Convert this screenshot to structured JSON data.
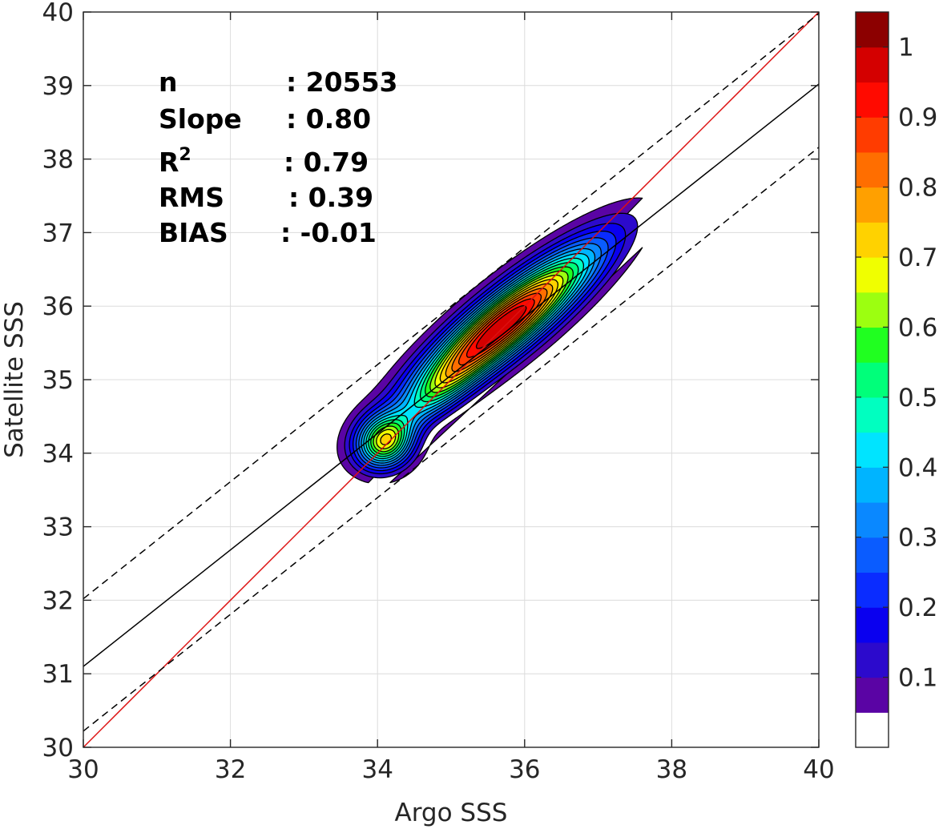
{
  "chart_data": {
    "type": "contour-density",
    "xlabel": "Argo SSS",
    "ylabel": "Satellite SSS",
    "xlim": [
      30,
      40
    ],
    "ylim": [
      30,
      40
    ],
    "xticks": [
      "30",
      "32",
      "34",
      "36",
      "38",
      "40"
    ],
    "yticks": [
      "30",
      "31",
      "32",
      "33",
      "34",
      "35",
      "36",
      "37",
      "38",
      "39",
      "40"
    ],
    "grid": true,
    "stats": [
      {
        "label": "n",
        "value": ": 20553"
      },
      {
        "label": "Slope",
        "value": ": 0.80"
      },
      {
        "label": "R",
        "label_sup": "2",
        "value": ": 0.79"
      },
      {
        "label": "RMS",
        "value": ": 0.39"
      },
      {
        "label": "BIAS",
        "value": ": -0.01"
      }
    ],
    "lines": [
      {
        "kind": "identity",
        "color": "#dd1111",
        "style": "solid",
        "x": [
          30,
          40
        ],
        "y": [
          30,
          40
        ]
      },
      {
        "kind": "regression",
        "color": "#000000",
        "style": "solid",
        "x": [
          30,
          40
        ],
        "y": [
          31.1,
          39.02
        ]
      },
      {
        "kind": "upper-bound",
        "color": "#000000",
        "style": "dashed",
        "x": [
          30,
          40
        ],
        "y": [
          32.02,
          39.98
        ]
      },
      {
        "kind": "lower-bound",
        "color": "#000000",
        "style": "dashed",
        "x": [
          30,
          40
        ],
        "y": [
          30.22,
          38.16
        ]
      }
    ],
    "density_peaks": [
      {
        "x": 35.75,
        "y": 35.78,
        "value": 1.0,
        "sx": 1.05,
        "sy": 0.26,
        "angle_deg": 39
      },
      {
        "x": 34.1,
        "y": 34.15,
        "value": 0.62,
        "sx": 0.27,
        "sy": 0.24,
        "angle_deg": 35
      },
      {
        "x": 34.85,
        "y": 34.85,
        "value": 0.22,
        "sx": 0.55,
        "sy": 0.18,
        "angle_deg": 42
      }
    ],
    "contour_levels": [
      0.05,
      0.1,
      0.15,
      0.2,
      0.25,
      0.3,
      0.35,
      0.4,
      0.45,
      0.5,
      0.55,
      0.6,
      0.65,
      0.7,
      0.75,
      0.8,
      0.85,
      0.9,
      0.95
    ],
    "colorbar": {
      "ticks": [
        "0.1",
        "0.2",
        "0.3",
        "0.4",
        "0.5",
        "0.6",
        "0.7",
        "0.8",
        "0.9",
        "1"
      ],
      "tick_values": [
        0.1,
        0.2,
        0.3,
        0.4,
        0.5,
        0.6,
        0.7,
        0.8,
        0.9,
        1.0
      ],
      "colors": [
        "#ffffff",
        "#5a04a4",
        "#2c0acc",
        "#0a00ef",
        "#0a2cff",
        "#0a5cff",
        "#0a88ff",
        "#00b4ff",
        "#00e4ff",
        "#00ffc0",
        "#00ff7a",
        "#20ff20",
        "#9cff10",
        "#f0ff00",
        "#ffd200",
        "#ffa000",
        "#ff6e00",
        "#ff3c00",
        "#ff0a00",
        "#d40000",
        "#8c0000"
      ]
    }
  }
}
